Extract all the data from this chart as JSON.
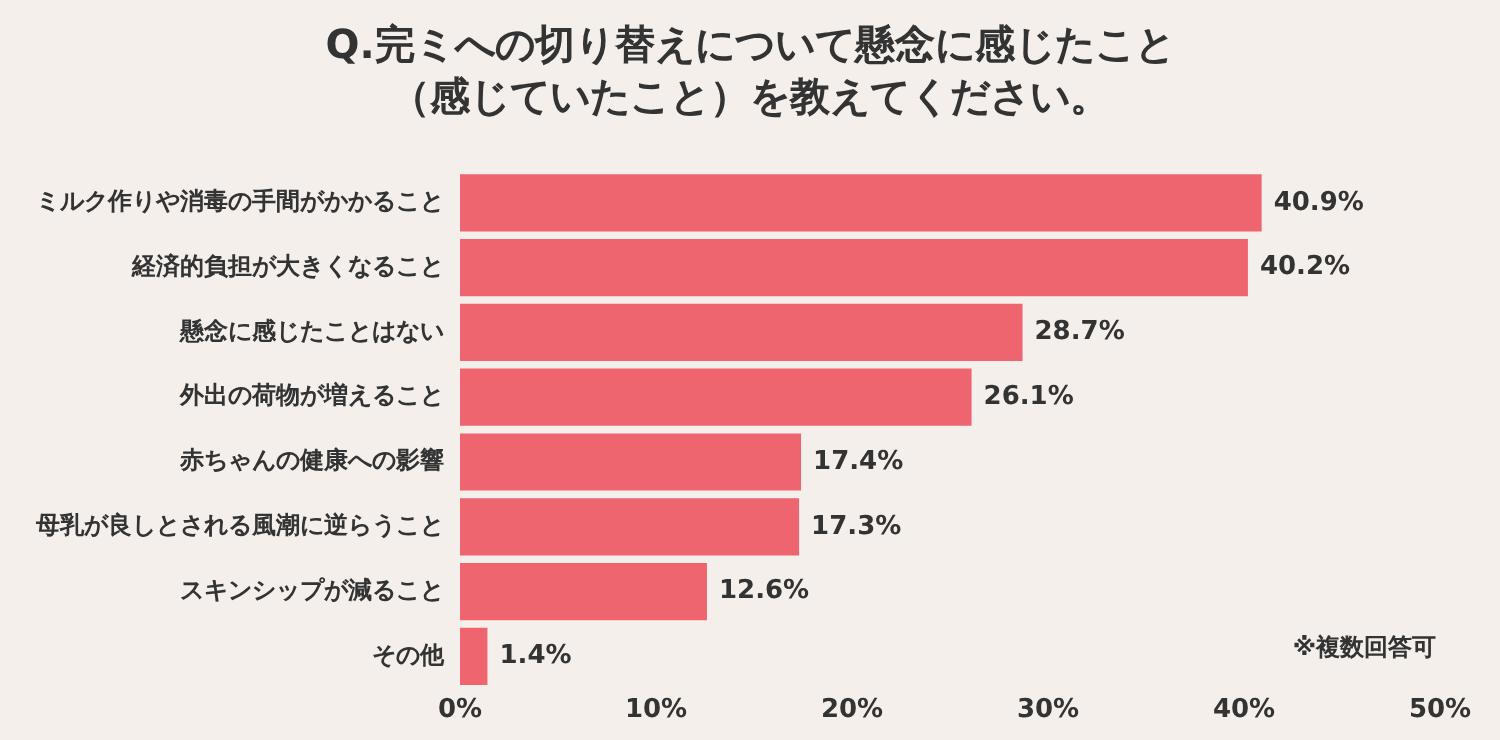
{
  "chart_data": {
    "type": "bar",
    "orientation": "horizontal",
    "title": "Q.完ミへの切り替えについて懸念に感じたこと（感じていたこと）を教えてください。",
    "categories": [
      "ミルク作りや消毒の手間がかかること",
      "経済的負担が大きくなること",
      "懸念に感じたことはない",
      "外出の荷物が増えること",
      "赤ちゃんの健康への影響",
      "母乳が良しとされる風潮に逆らうこと",
      "スキンシップが減ること",
      "その他"
    ],
    "values": [
      40.9,
      40.2,
      28.7,
      26.1,
      17.4,
      17.3,
      12.6,
      1.4
    ],
    "value_labels": [
      "40.9%",
      "40.2%",
      "28.7%",
      "26.1%",
      "17.4%",
      "17.3%",
      "12.6%",
      "1.4%"
    ],
    "color": "#ee6570",
    "xlim": [
      0,
      50
    ],
    "xticks": [
      {
        "value": 0,
        "label": "0%"
      },
      {
        "value": 10,
        "label": "10%"
      },
      {
        "value": 20,
        "label": "20%"
      },
      {
        "value": 30,
        "label": "30%"
      },
      {
        "value": 40,
        "label": "40%"
      },
      {
        "value": 50,
        "label": "50%"
      }
    ],
    "grid": false,
    "legend": false,
    "annotations": [
      "※複数回答可"
    ]
  }
}
